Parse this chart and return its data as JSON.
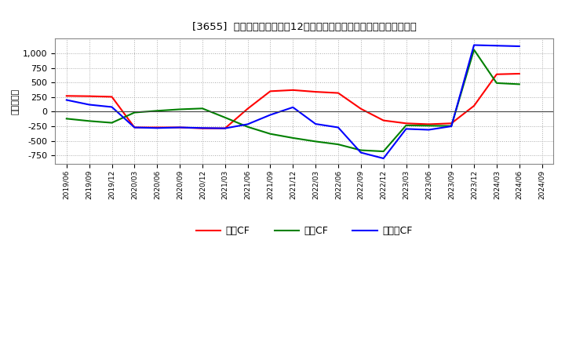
{
  "title": "[3655]  キャッシュフローの12か月移動合計の対前年同期増減額の推移",
  "ylabel": "（百万円）",
  "background_color": "#ffffff",
  "plot_background": "#ffffff",
  "grid_color": "#aaaaaa",
  "xlabels": [
    "2019/06",
    "2019/09",
    "2019/12",
    "2020/03",
    "2020/06",
    "2020/09",
    "2020/12",
    "2021/03",
    "2021/06",
    "2021/09",
    "2021/12",
    "2022/03",
    "2022/06",
    "2022/09",
    "2022/12",
    "2023/03",
    "2023/06",
    "2023/09",
    "2023/12",
    "2024/03",
    "2024/06",
    "2024/09"
  ],
  "eigyo_cf": [
    270,
    265,
    255,
    -270,
    -270,
    -270,
    -285,
    -285,
    50,
    350,
    370,
    340,
    320,
    50,
    -150,
    -200,
    -215,
    -200,
    100,
    640,
    650,
    null
  ],
  "toshi_cf": [
    -120,
    -160,
    -190,
    -15,
    15,
    40,
    55,
    -100,
    -260,
    -380,
    -450,
    -510,
    -560,
    -660,
    -680,
    -235,
    -240,
    -245,
    1060,
    490,
    470,
    null
  ],
  "free_cf": [
    200,
    120,
    80,
    -270,
    -280,
    -270,
    -280,
    -285,
    -215,
    -55,
    75,
    -210,
    -270,
    -700,
    -800,
    -295,
    -310,
    -250,
    1140,
    1130,
    1120,
    null
  ],
  "eigyo_color": "#ff0000",
  "toshi_color": "#008000",
  "free_color": "#0000ff",
  "ylim": [
    -900,
    1250
  ],
  "yticks": [
    -750,
    -500,
    -250,
    0,
    250,
    500,
    750,
    1000
  ],
  "legend_labels": [
    "営業CF",
    "投資CF",
    "フリーCF"
  ]
}
